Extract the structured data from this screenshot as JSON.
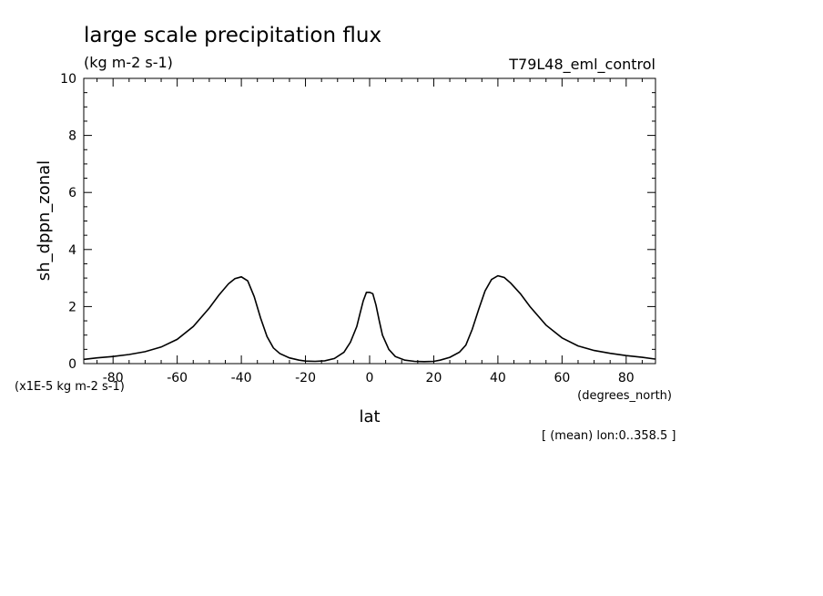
{
  "chart_data": {
    "type": "line",
    "title": "large scale precipitation flux",
    "units": "(kg m-2 s-1)",
    "experiment": "T79L48_eml_control",
    "xlabel": "lat",
    "x_units": "(degrees_north)",
    "ylabel": "sh_dppn_zonal",
    "y_scale_note": "(x1E-5 kg m-2 s-1)",
    "averaging_note": "[ (mean) lon:0..358.5 ]",
    "xlim": [
      -89.14,
      89.14
    ],
    "ylim": [
      0,
      10
    ],
    "x_ticks": [
      -80,
      -60,
      -40,
      -20,
      0,
      20,
      40,
      60,
      80
    ],
    "x_tick_labels": [
      "-80",
      "-60",
      "-40",
      "-20",
      "0",
      "20",
      "40",
      "60",
      "80"
    ],
    "y_ticks": [
      0,
      2,
      4,
      6,
      8,
      10
    ],
    "y_tick_labels": [
      "0",
      "2",
      "4",
      "6",
      "8",
      "10"
    ],
    "grid": false,
    "series": [
      {
        "x": [
          -89,
          -85,
          -80,
          -75,
          -70,
          -65,
          -60,
          -55,
          -50,
          -47,
          -44,
          -42,
          -40,
          -38,
          -36,
          -34,
          -32,
          -30,
          -28,
          -25,
          -22,
          -20,
          -17,
          -14,
          -11,
          -8,
          -6,
          -4,
          -3,
          -2,
          -1,
          0,
          1,
          2,
          3,
          4,
          6,
          8,
          11,
          14,
          17,
          20,
          22,
          25,
          28,
          30,
          32,
          34,
          36,
          38,
          40,
          42,
          44,
          47,
          50,
          55,
          60,
          65,
          70,
          75,
          80,
          85,
          89
        ],
        "y": [
          0.15,
          0.2,
          0.25,
          0.32,
          0.42,
          0.58,
          0.85,
          1.3,
          1.95,
          2.4,
          2.8,
          2.98,
          3.04,
          2.9,
          2.35,
          1.6,
          0.95,
          0.55,
          0.35,
          0.2,
          0.12,
          0.09,
          0.08,
          0.1,
          0.18,
          0.4,
          0.75,
          1.3,
          1.75,
          2.2,
          2.5,
          2.5,
          2.45,
          2.05,
          1.5,
          1.0,
          0.5,
          0.25,
          0.12,
          0.08,
          0.07,
          0.08,
          0.12,
          0.22,
          0.4,
          0.65,
          1.2,
          1.9,
          2.55,
          2.95,
          3.08,
          3.02,
          2.82,
          2.45,
          2.0,
          1.35,
          0.9,
          0.62,
          0.46,
          0.36,
          0.28,
          0.22,
          0.16
        ]
      }
    ]
  }
}
